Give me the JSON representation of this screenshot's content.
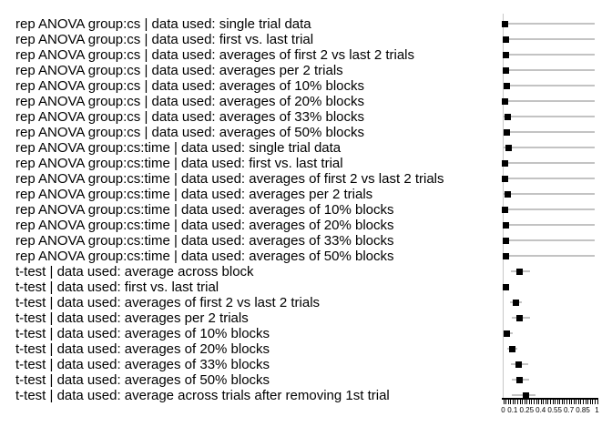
{
  "chart_data": {
    "type": "scatter",
    "title": "",
    "xlabel": "",
    "ylabel": "",
    "legend": null,
    "grid": false,
    "x_axis": {
      "range": [
        0,
        1
      ],
      "labeled_ticks": [
        "0",
        "0.1",
        "0.25",
        "0.4",
        "0.55",
        "0.7",
        "0.85",
        "1"
      ],
      "labeled_tick_values": [
        0,
        0.1,
        0.25,
        0.4,
        0.55,
        0.7,
        0.85,
        1
      ],
      "minor_tick_step": 0.025
    },
    "reference_line_x": 0,
    "rows": [
      {
        "label": "rep ANOVA group:cs | data used: single trial data",
        "value": 0.02,
        "ci": [
          0.0,
          0.975
        ]
      },
      {
        "label": "rep ANOVA group:cs | data used: first vs. last trial",
        "value": 0.03,
        "ci": [
          0.0,
          0.975
        ]
      },
      {
        "label": "rep ANOVA group:cs | data used: averages of first 2 vs last 2 trials",
        "value": 0.03,
        "ci": [
          0.0,
          0.975
        ]
      },
      {
        "label": "rep ANOVA group:cs | data used: averages per 2 trials",
        "value": 0.03,
        "ci": [
          0.0,
          0.975
        ]
      },
      {
        "label": "rep ANOVA group:cs | data used: averages of 10% blocks",
        "value": 0.035,
        "ci": [
          0.0,
          0.975
        ]
      },
      {
        "label": "rep ANOVA group:cs | data used: averages of 20% blocks",
        "value": 0.02,
        "ci": [
          0.0,
          0.975
        ]
      },
      {
        "label": "rep ANOVA group:cs | data used: averages of 33% blocks",
        "value": 0.045,
        "ci": [
          0.0,
          0.975
        ]
      },
      {
        "label": "rep ANOVA group:cs | data used: averages of 50% blocks",
        "value": 0.04,
        "ci": [
          0.0,
          0.975
        ]
      },
      {
        "label": "rep ANOVA group:cs:time | data used: single trial data",
        "value": 0.055,
        "ci": [
          0.0,
          0.975
        ]
      },
      {
        "label": "rep ANOVA group:cs:time | data used: first vs. last trial",
        "value": 0.02,
        "ci": [
          0.0,
          0.975
        ]
      },
      {
        "label": "rep ANOVA group:cs:time | data used: averages of first 2 vs last 2 trials",
        "value": 0.02,
        "ci": [
          0.0,
          0.975
        ]
      },
      {
        "label": "rep ANOVA group:cs:time | data used: averages per 2 trials",
        "value": 0.045,
        "ci": [
          0.0,
          0.975
        ]
      },
      {
        "label": "rep ANOVA group:cs:time | data used: averages of 10% blocks",
        "value": 0.015,
        "ci": [
          0.0,
          0.975
        ]
      },
      {
        "label": "rep ANOVA group:cs:time | data used: averages of 20% blocks",
        "value": 0.025,
        "ci": [
          0.0,
          0.975
        ]
      },
      {
        "label": "rep ANOVA group:cs:time | data used: averages of 33% blocks",
        "value": 0.03,
        "ci": [
          0.0,
          0.975
        ]
      },
      {
        "label": "rep ANOVA group:cs:time | data used: averages of 50% blocks",
        "value": 0.025,
        "ci": [
          0.0,
          0.975
        ]
      },
      {
        "label": "t-test | data used: average across block",
        "value": 0.175,
        "ci": [
          0.085,
          0.29
        ]
      },
      {
        "label": "t-test | data used: first vs. last trial",
        "value": 0.028,
        "ci": [
          0.005,
          0.055
        ]
      },
      {
        "label": "t-test | data used: averages of first 2 vs last 2 trials",
        "value": 0.135,
        "ci": [
          0.075,
          0.2
        ]
      },
      {
        "label": "t-test | data used: averages per 2 trials",
        "value": 0.17,
        "ci": [
          0.09,
          0.285
        ]
      },
      {
        "label": "t-test | data used: averages of 10% blocks",
        "value": 0.038,
        "ci": [
          0.015,
          0.105
        ]
      },
      {
        "label": "t-test | data used: averages of 20% blocks",
        "value": 0.095,
        "ci": [
          0.04,
          0.155
        ]
      },
      {
        "label": "t-test | data used: averages of 33% blocks",
        "value": 0.165,
        "ci": [
          0.08,
          0.265
        ]
      },
      {
        "label": "t-test | data used: averages of 50% blocks",
        "value": 0.175,
        "ci": [
          0.09,
          0.275
        ]
      },
      {
        "label": "t-test | data used: average across trials after removing 1st trial",
        "value": 0.24,
        "ci": [
          0.095,
          0.34
        ]
      }
    ]
  },
  "colors": {
    "background": "#ffffff",
    "point": "#000000",
    "ci_line": "#c3c3c3",
    "reference_line": "#c8c8c8",
    "axis": "#000000",
    "text": "#000000"
  }
}
